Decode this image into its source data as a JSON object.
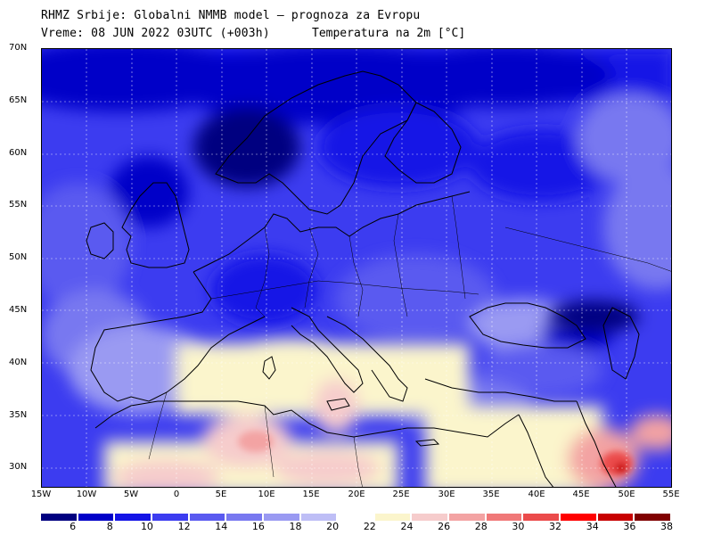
{
  "header": {
    "line1": "RHMZ Srbije: Globalni NMMB model — prognoza za Evropu",
    "line2": "Vreme: 08 JUN 2022 03UTC (+003h)",
    "line3": "Temperatura na 2m [°C]"
  },
  "map": {
    "lat_labels": [
      "70N",
      "65N",
      "60N",
      "55N",
      "50N",
      "45N",
      "40N",
      "35N",
      "30N"
    ],
    "lon_labels": [
      "15W",
      "10W",
      "5W",
      "0",
      "5E",
      "10E",
      "15E",
      "20E",
      "25E",
      "30E",
      "35E",
      "40E",
      "45E",
      "50E",
      "55E"
    ]
  },
  "colorbar": {
    "colors": [
      "#000080",
      "#0000c8",
      "#1414e6",
      "#3c3cf0",
      "#5a5af0",
      "#7878f0",
      "#9a9af2",
      "#bebef6",
      "#ffffff",
      "#fbf5cc",
      "#f6cccc",
      "#f3a3a3",
      "#f07878",
      "#eb4b4b",
      "#ff0000",
      "#c80000",
      "#800000"
    ],
    "labels": [
      "6",
      "8",
      "10",
      "12",
      "14",
      "16",
      "18",
      "20",
      "22",
      "24",
      "26",
      "28",
      "30",
      "32",
      "34",
      "36",
      "38"
    ]
  }
}
